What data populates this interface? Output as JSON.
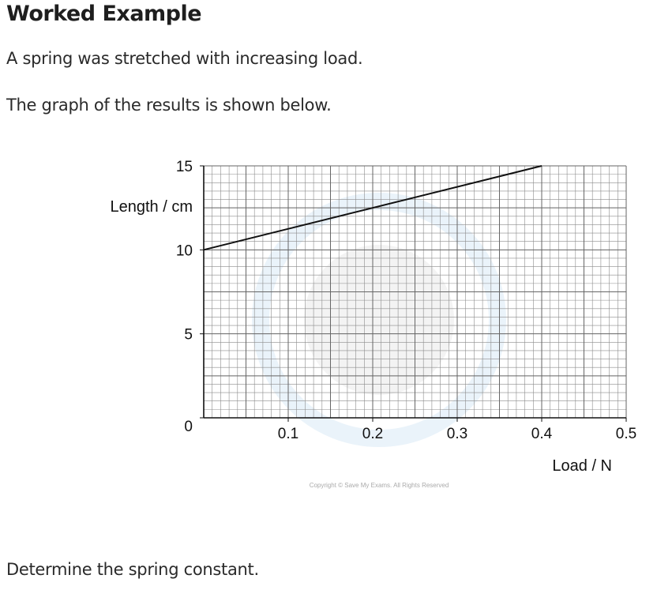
{
  "heading": "Worked Example",
  "paragraphs": {
    "intro": "A spring was stretched with increasing load.",
    "graph_intro": "The graph of the results is shown below.",
    "question": "Determine the spring constant."
  },
  "copyright": "Copyright © Save My Exams. All Rights Reserved",
  "colors": {
    "grid": "#8c8c8c",
    "line": "#111111",
    "watermark": "#eaf3fa"
  },
  "chart_data": {
    "type": "line",
    "title": "",
    "xlabel": "Load / N",
    "ylabel": "Length / cm",
    "xlim": [
      0,
      0.5
    ],
    "ylim": [
      0,
      15
    ],
    "x_ticks": [
      {
        "value": 0.1,
        "label": "0.1"
      },
      {
        "value": 0.2,
        "label": "0.2"
      },
      {
        "value": 0.3,
        "label": "0.3"
      },
      {
        "value": 0.4,
        "label": "0.4"
      },
      {
        "value": 0.5,
        "label": "0.5"
      }
    ],
    "y_ticks": [
      {
        "value": 0,
        "label": "0"
      },
      {
        "value": 5,
        "label": "5"
      },
      {
        "value": 10,
        "label": "10"
      },
      {
        "value": 15,
        "label": "15"
      }
    ],
    "grid": true,
    "x_minor_step": 0.01,
    "y_minor_step": 0.5,
    "series": [
      {
        "x": [
          0,
          0.4
        ],
        "y": [
          10,
          15
        ]
      }
    ]
  }
}
